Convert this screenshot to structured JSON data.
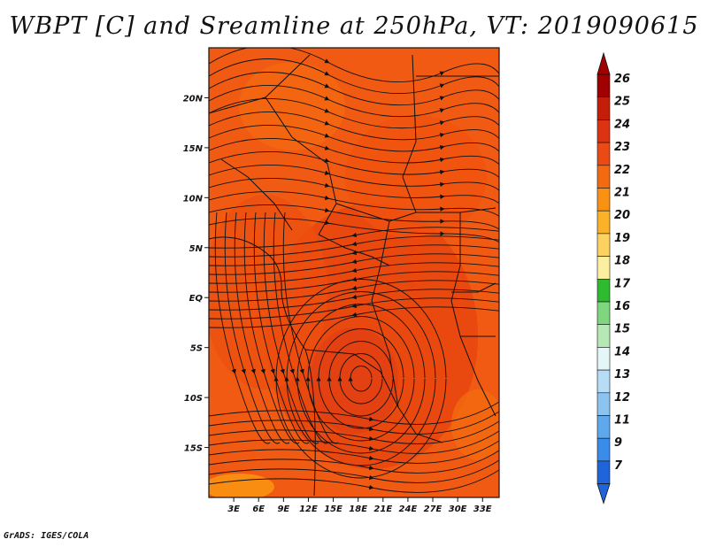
{
  "title": "WBPT [C] and Sreamline at 250hPa, VT: 2019090615",
  "footer": "GrADS: IGES/COLA",
  "map": {
    "lon_range": [
      0,
      35
    ],
    "lat_range": [
      -20,
      25
    ],
    "lat_ticks": [
      {
        "value": 20,
        "label": "20N"
      },
      {
        "value": 15,
        "label": "15N"
      },
      {
        "value": 10,
        "label": "10N"
      },
      {
        "value": 5,
        "label": "5N"
      },
      {
        "value": 0,
        "label": "EQ"
      },
      {
        "value": -5,
        "label": "5S"
      },
      {
        "value": -10,
        "label": "10S"
      },
      {
        "value": -15,
        "label": "15S"
      }
    ],
    "lon_ticks": [
      {
        "value": 3,
        "label": "3E"
      },
      {
        "value": 6,
        "label": "6E"
      },
      {
        "value": 9,
        "label": "9E"
      },
      {
        "value": 12,
        "label": "12E"
      },
      {
        "value": 15,
        "label": "15E"
      },
      {
        "value": 18,
        "label": "18E"
      },
      {
        "value": 21,
        "label": "21E"
      },
      {
        "value": 24,
        "label": "24E"
      },
      {
        "value": 27,
        "label": "27E"
      },
      {
        "value": 30,
        "label": "30E"
      },
      {
        "value": 33,
        "label": "33E"
      }
    ],
    "background_color": "#f05a12"
  },
  "colorbar": {
    "labels": [
      "26",
      "25",
      "24",
      "23",
      "22",
      "21",
      "20",
      "19",
      "18",
      "17",
      "16",
      "15",
      "14",
      "13",
      "12",
      "11",
      "9",
      "7"
    ],
    "colors": [
      "#a00000",
      "#c41e0a",
      "#dc3412",
      "#ec4a14",
      "#f46a10",
      "#f99212",
      "#fbb226",
      "#fdd260",
      "#fdefa0",
      "#2fbb2f",
      "#7ed67e",
      "#b6e8b6",
      "#e4f6f6",
      "#b6dcf6",
      "#8cc4f0",
      "#5ea8ec",
      "#3a8cea",
      "#2064dc"
    ]
  }
}
